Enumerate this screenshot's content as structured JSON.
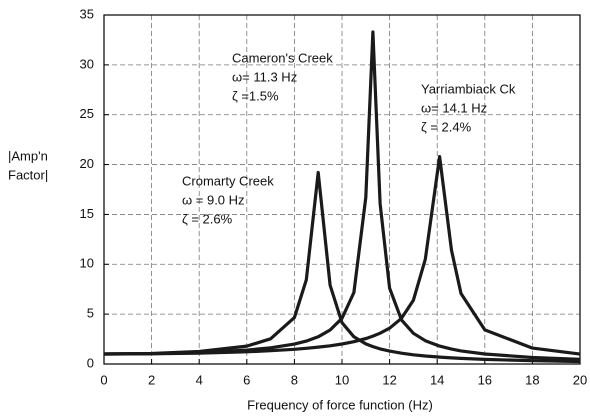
{
  "chart_data": {
    "type": "line",
    "xlabel": "Frequency of force function (Hz)",
    "ylabel": [
      "|Amp'n",
      "Factor|"
    ],
    "x": [
      0,
      2,
      4,
      6,
      7,
      8,
      8.5,
      9,
      9.5,
      10,
      10.5,
      11,
      11.3,
      11.6,
      12,
      12.5,
      13,
      13.5,
      14.1,
      14.6,
      15,
      16,
      18,
      20
    ],
    "series": [
      {
        "color": "#1a1a1a",
        "values": [
          1,
          1.05,
          1.25,
          1.8,
          2.53,
          4.65,
          8.43,
          19.2,
          7.9,
          4.14,
          2.73,
          2.02,
          1.74,
          1.51,
          1.29,
          1.08,
          0.92,
          0.8,
          0.69,
          0.61,
          0.56,
          0.46,
          0.33,
          0.25
        ]
      },
      {
        "color": "#1a1a1a",
        "values": [
          1,
          1.03,
          1.14,
          1.39,
          1.62,
          2.0,
          2.3,
          2.73,
          3.41,
          4.58,
          7.17,
          16.7,
          33.3,
          16.1,
          7.6,
          4.42,
          3.08,
          2.34,
          1.8,
          1.49,
          1.31,
          1.0,
          0.65,
          0.47
        ]
      },
      {
        "color": "#1a1a1a",
        "values": [
          1,
          1.02,
          1.09,
          1.22,
          1.33,
          1.47,
          1.57,
          1.69,
          1.83,
          2.01,
          2.24,
          2.55,
          2.8,
          3.09,
          3.59,
          4.58,
          6.4,
          10.5,
          20.8,
          11.4,
          7.07,
          3.42,
          1.59,
          0.99
        ]
      }
    ],
    "annotations": [
      [
        "Cameron's Creek",
        "ω= 11.3 Hz",
        "ζ =1.5%"
      ],
      [
        "Cromarty Creek",
        "ω = 9.0 Hz",
        "ζ = 2.6%"
      ],
      [
        "Yarriambiack Ck",
        "ω= 14.1 Hz",
        "ζ = 2.4%"
      ]
    ],
    "xlim": [
      0,
      20
    ],
    "xticks": [
      0,
      2,
      4,
      6,
      8,
      10,
      12,
      14,
      16,
      18,
      20
    ],
    "ylim": [
      0,
      35
    ],
    "yticks": [
      0,
      5,
      10,
      15,
      20,
      25,
      30,
      35
    ],
    "grid": true
  }
}
